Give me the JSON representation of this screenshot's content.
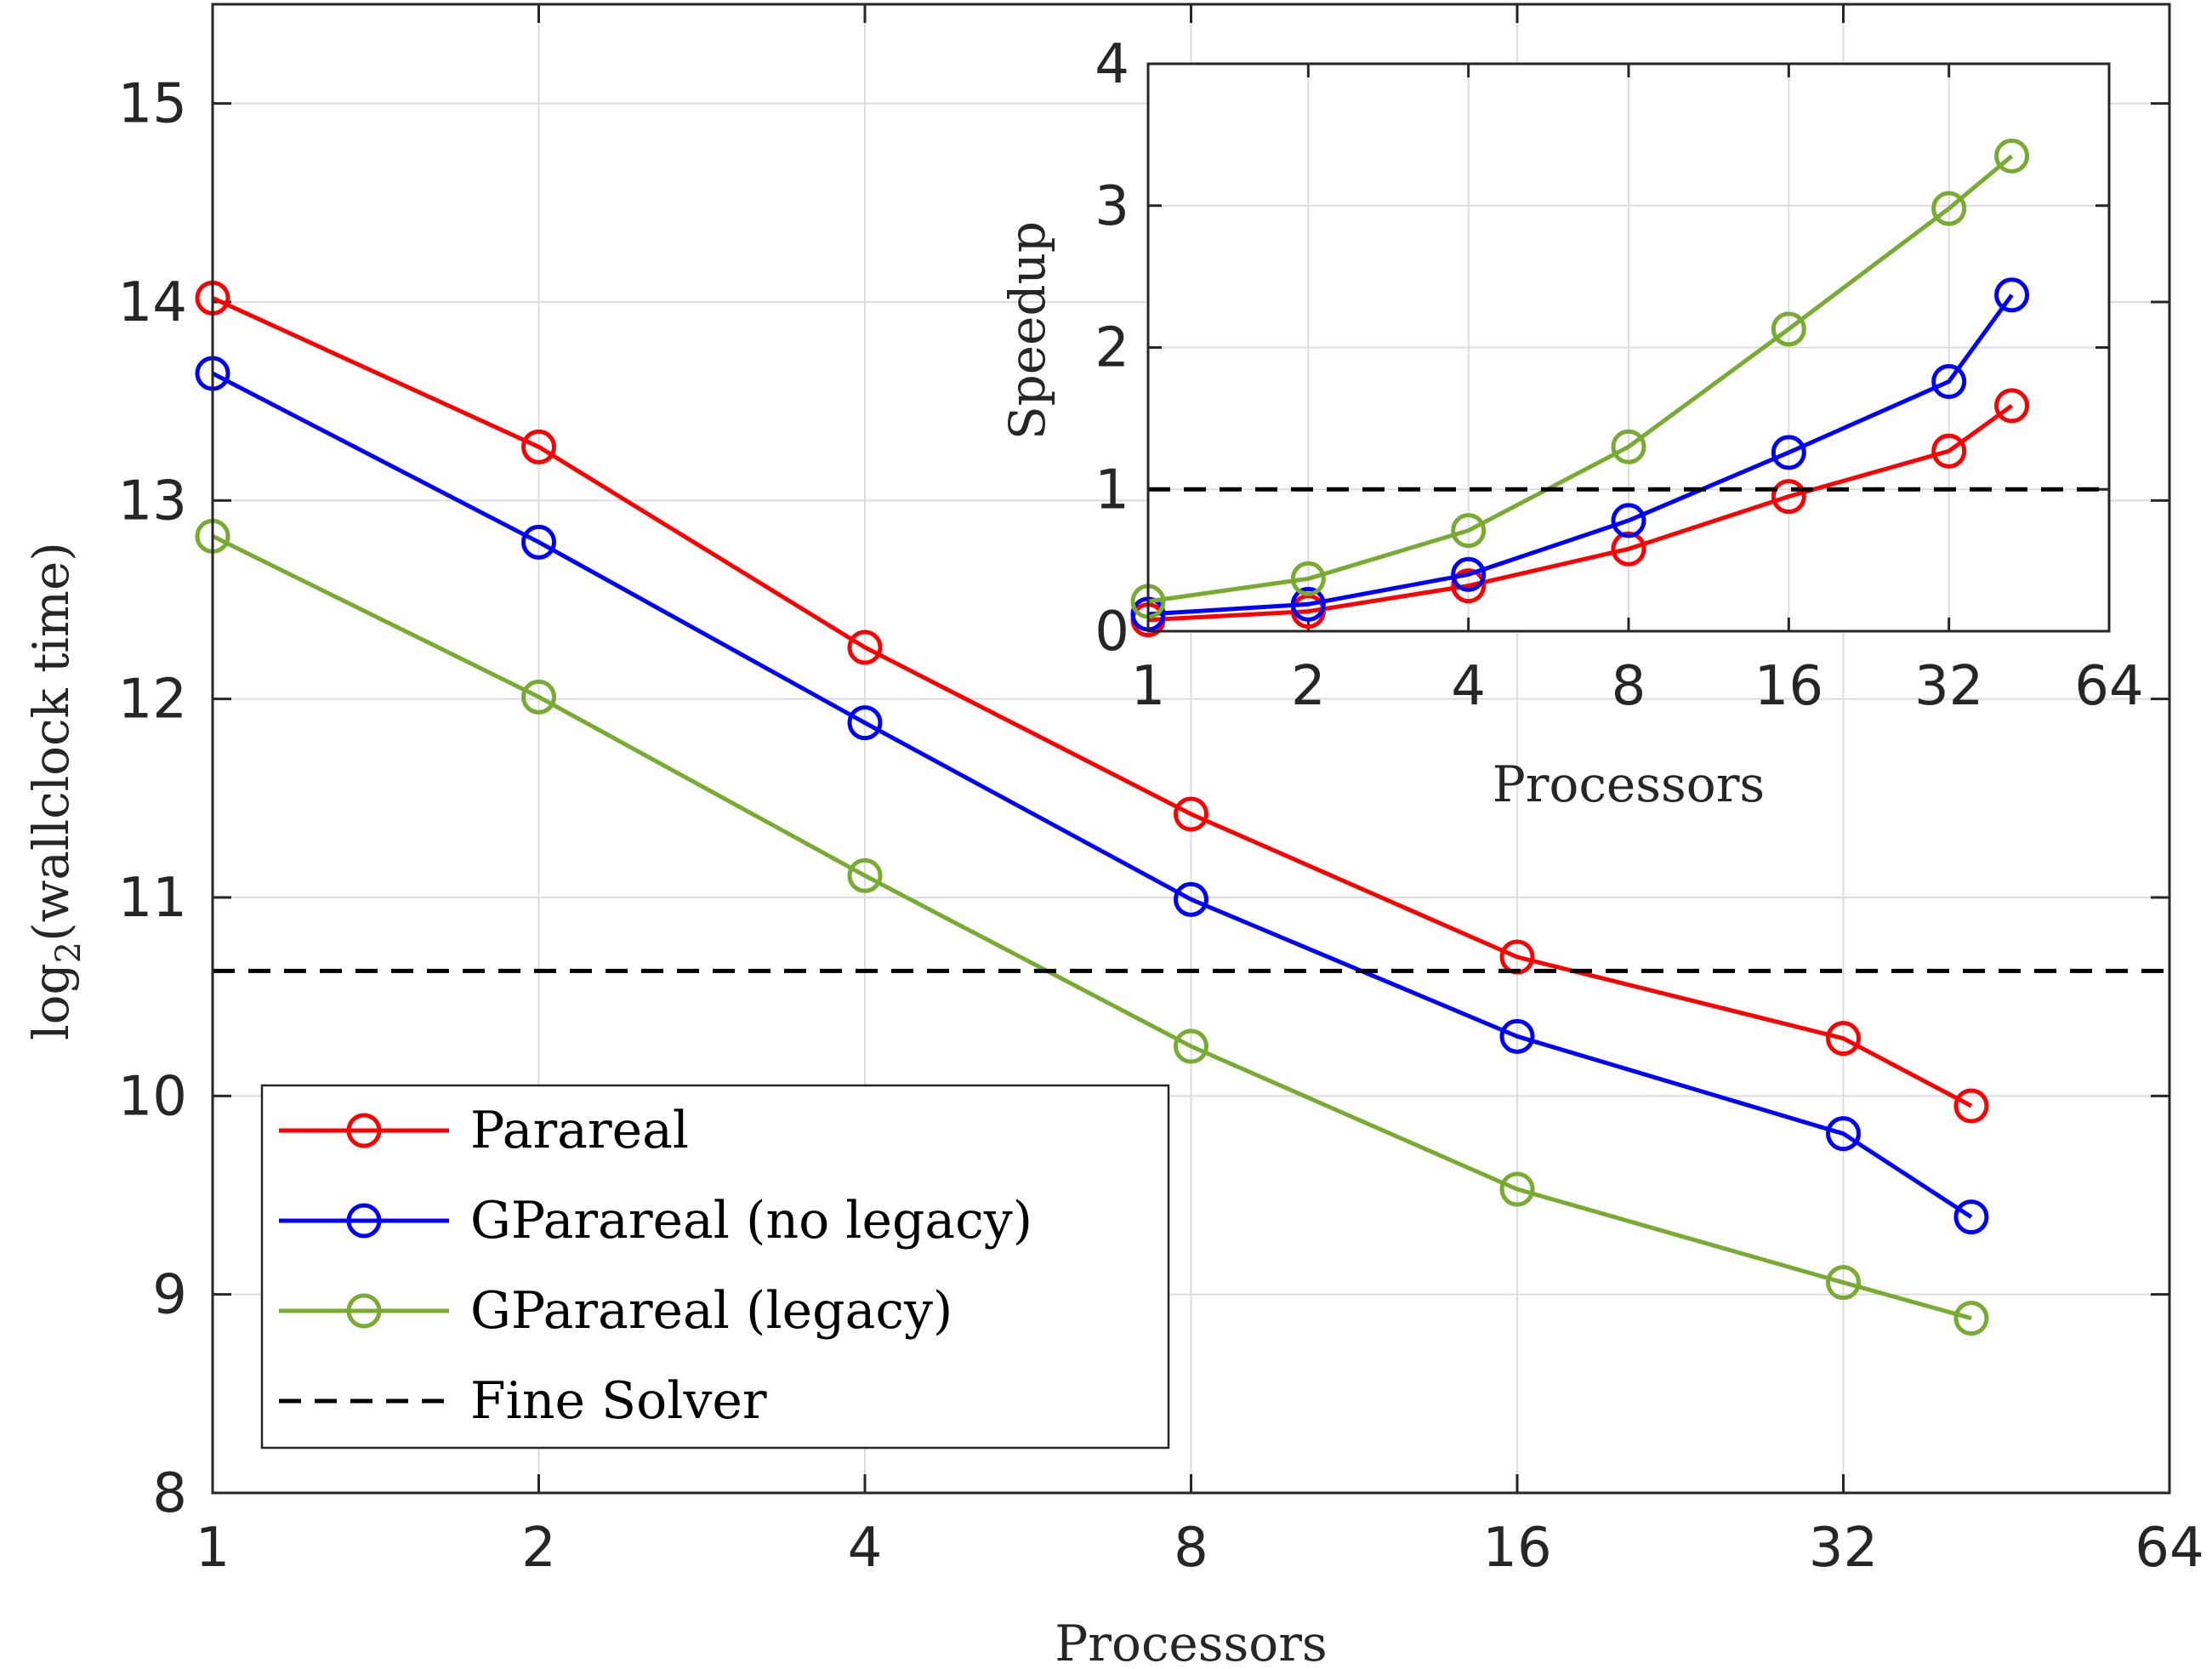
{
  "chart_data": [
    {
      "type": "line",
      "xscale": "log2",
      "xlim": [
        1,
        64
      ],
      "ylim": [
        8,
        15.5
      ],
      "xticks": [
        1,
        2,
        4,
        8,
        16,
        32,
        64
      ],
      "xtick_labels": [
        "1",
        "2",
        "4",
        "8",
        "16",
        "32",
        "64"
      ],
      "yticks": [
        8,
        9,
        10,
        11,
        12,
        13,
        14,
        15
      ],
      "ytick_labels": [
        "8",
        "9",
        "10",
        "11",
        "12",
        "13",
        "14",
        "15"
      ],
      "xlabel": "Processors",
      "ylabel": "log",
      "ylabel_sub": "2",
      "ylabel_rest": "(wallclock time)",
      "grid": true,
      "legend_position": "bottom-left",
      "x": [
        1,
        2,
        4,
        8,
        16,
        32,
        42
      ],
      "series": [
        {
          "name": "Parareal",
          "color": "#ff0000",
          "marker": "circle",
          "values": [
            14.02,
            13.27,
            12.26,
            11.42,
            10.7,
            10.29,
            9.95
          ]
        },
        {
          "name": "GParareal (no legacy)",
          "color": "#0000ff",
          "marker": "circle",
          "values": [
            13.64,
            12.79,
            11.88,
            10.99,
            10.3,
            9.81,
            9.39
          ]
        },
        {
          "name": "GParareal (legacy)",
          "color": "#77ac30",
          "marker": "circle",
          "values": [
            12.82,
            12.01,
            11.11,
            10.25,
            9.53,
            9.06,
            8.88
          ]
        },
        {
          "name": "Fine Solver",
          "color": "#000000",
          "style": "dashed",
          "constant": 10.63
        }
      ]
    },
    {
      "type": "line",
      "xscale": "log2",
      "xlim": [
        1,
        64
      ],
      "ylim": [
        0,
        4
      ],
      "xticks": [
        1,
        2,
        4,
        8,
        16,
        32,
        64
      ],
      "xtick_labels": [
        "1",
        "2",
        "4",
        "8",
        "16",
        "32",
        "64"
      ],
      "yticks": [
        0,
        1,
        2,
        3,
        4
      ],
      "ytick_labels": [
        "0",
        "1",
        "2",
        "3",
        "4"
      ],
      "xlabel": "Processors",
      "ylabel": "Speedup",
      "grid": true,
      "x": [
        1,
        2,
        4,
        8,
        16,
        32,
        42
      ],
      "series": [
        {
          "name": "Parareal",
          "color": "#ff0000",
          "marker": "circle",
          "values": [
            0.08,
            0.14,
            0.32,
            0.58,
            0.95,
            1.27,
            1.59
          ]
        },
        {
          "name": "GParareal (no legacy)",
          "color": "#0000ff",
          "marker": "circle",
          "values": [
            0.12,
            0.19,
            0.4,
            0.78,
            1.26,
            1.76,
            2.37
          ]
        },
        {
          "name": "GParareal (legacy)",
          "color": "#77ac30",
          "marker": "circle",
          "values": [
            0.21,
            0.37,
            0.71,
            1.3,
            2.13,
            2.98,
            3.35
          ]
        },
        {
          "name": "Fine Solver",
          "color": "#000000",
          "style": "dashed",
          "constant": 1.0
        }
      ]
    }
  ]
}
